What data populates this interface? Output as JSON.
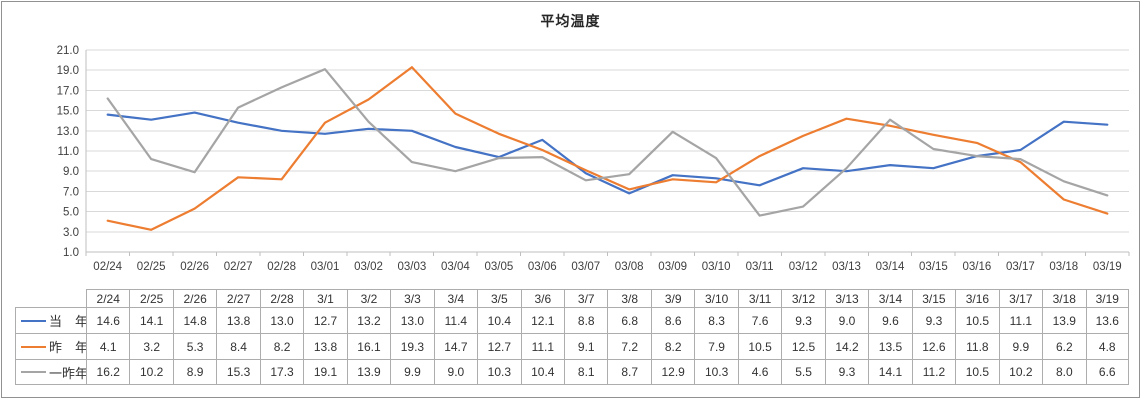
{
  "chart_data": {
    "type": "line",
    "title": "平均温度",
    "x": [
      "02/24",
      "02/25",
      "02/26",
      "02/27",
      "02/28",
      "03/01",
      "03/02",
      "03/03",
      "03/04",
      "03/05",
      "03/06",
      "03/07",
      "03/08",
      "03/09",
      "03/10",
      "03/11",
      "03/12",
      "03/13",
      "03/14",
      "03/15",
      "03/16",
      "03/17",
      "03/18",
      "03/19"
    ],
    "series": [
      {
        "name": "当　年",
        "color": "#4472C4",
        "values": [
          14.6,
          14.1,
          14.8,
          13.8,
          13.0,
          12.7,
          13.2,
          13.0,
          11.4,
          10.4,
          12.1,
          8.8,
          6.8,
          8.6,
          8.3,
          7.6,
          9.3,
          9.0,
          9.6,
          9.3,
          10.5,
          11.1,
          13.9,
          13.6
        ]
      },
      {
        "name": "昨　年",
        "color": "#ED7D31",
        "values": [
          4.1,
          3.2,
          5.3,
          8.4,
          8.2,
          13.8,
          16.1,
          19.3,
          14.7,
          12.7,
          11.1,
          9.1,
          7.2,
          8.2,
          7.9,
          10.5,
          12.5,
          14.2,
          13.5,
          12.6,
          11.8,
          9.9,
          6.2,
          4.8
        ]
      },
      {
        "name": "一昨年",
        "color": "#A5A5A5",
        "values": [
          16.2,
          10.2,
          8.9,
          15.3,
          17.3,
          19.1,
          13.9,
          9.9,
          9.0,
          10.3,
          10.4,
          8.1,
          8.7,
          12.9,
          10.3,
          4.6,
          5.5,
          9.3,
          14.1,
          11.2,
          10.5,
          10.2,
          8.0,
          6.6
        ]
      }
    ],
    "ylim": [
      1.0,
      21.0
    ],
    "y_ticks": [
      "21.0",
      "19.0",
      "17.0",
      "15.0",
      "13.0",
      "11.0",
      "9.0",
      "7.0",
      "5.0",
      "3.0",
      "1.0"
    ],
    "grid": true,
    "legend_position": "data-table-left",
    "xlabel": "",
    "ylabel": ""
  },
  "data_table": {
    "corner_label": "",
    "headers": [
      "2/24",
      "2/25",
      "2/26",
      "2/27",
      "2/28",
      "3/1",
      "3/2",
      "3/3",
      "3/4",
      "3/5",
      "3/6",
      "3/7",
      "3/8",
      "3/9",
      "3/10",
      "3/11",
      "3/12",
      "3/13",
      "3/14",
      "3/15",
      "3/16",
      "3/17",
      "3/18",
      "3/19"
    ],
    "rows": [
      {
        "label": "当　年",
        "color": "#4472C4",
        "values": [
          "14.6",
          "14.1",
          "14.8",
          "13.8",
          "13.0",
          "12.7",
          "13.2",
          "13.0",
          "11.4",
          "10.4",
          "12.1",
          "8.8",
          "6.8",
          "8.6",
          "8.3",
          "7.6",
          "9.3",
          "9.0",
          "9.6",
          "9.3",
          "10.5",
          "11.1",
          "13.9",
          "13.6"
        ]
      },
      {
        "label": "昨　年",
        "color": "#ED7D31",
        "values": [
          "4.1",
          "3.2",
          "5.3",
          "8.4",
          "8.2",
          "13.8",
          "16.1",
          "19.3",
          "14.7",
          "12.7",
          "11.1",
          "9.1",
          "7.2",
          "8.2",
          "7.9",
          "10.5",
          "12.5",
          "14.2",
          "13.5",
          "12.6",
          "11.8",
          "9.9",
          "6.2",
          "4.8"
        ]
      },
      {
        "label": "一昨年",
        "color": "#A5A5A5",
        "values": [
          "16.2",
          "10.2",
          "8.9",
          "15.3",
          "17.3",
          "19.1",
          "13.9",
          "9.9",
          "9.0",
          "10.3",
          "10.4",
          "8.1",
          "8.7",
          "12.9",
          "10.3",
          "4.6",
          "5.5",
          "9.3",
          "14.1",
          "11.2",
          "10.5",
          "10.2",
          "8.0",
          "6.6"
        ]
      }
    ]
  },
  "colors": {
    "gridline": "#D9D9D9",
    "axis": "#BFBFBF",
    "axis_text": "#3F3F3F",
    "table_border": "#ADADAD",
    "frame": "#919191",
    "background": "#FFFFFF"
  }
}
